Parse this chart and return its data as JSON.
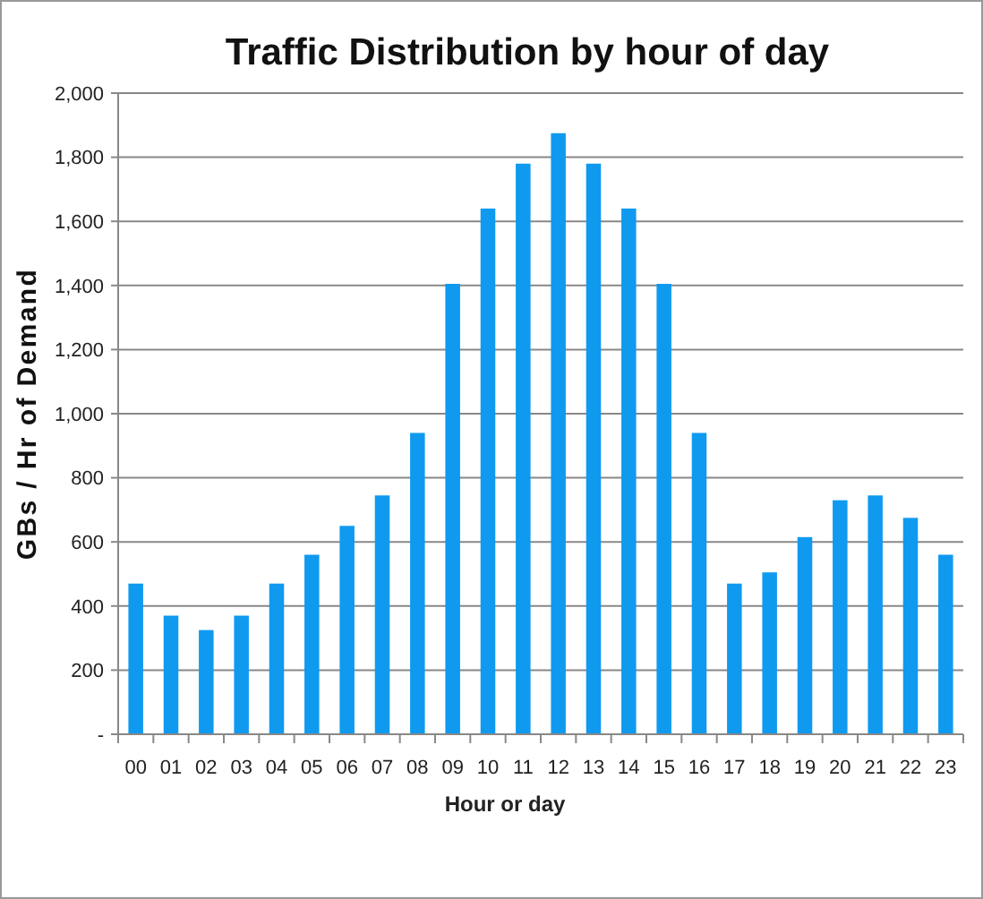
{
  "chart_data": {
    "type": "bar",
    "title": "Traffic Distribution by hour of day",
    "xlabel": "Hour or day",
    "ylabel": "GBs / Hr of Demand",
    "categories": [
      "00",
      "01",
      "02",
      "03",
      "04",
      "05",
      "06",
      "07",
      "08",
      "09",
      "10",
      "11",
      "12",
      "13",
      "14",
      "15",
      "16",
      "17",
      "18",
      "19",
      "20",
      "21",
      "22",
      "23"
    ],
    "values": [
      470,
      370,
      325,
      370,
      470,
      560,
      650,
      745,
      940,
      1405,
      1640,
      1780,
      1875,
      1780,
      1640,
      1405,
      940,
      470,
      505,
      615,
      730,
      745,
      675,
      560
    ],
    "color": "#0f9af0",
    "ylim": [
      0,
      2000
    ],
    "yticks": [
      {
        "value": 0,
        "label": "-"
      },
      {
        "value": 200,
        "label": "200"
      },
      {
        "value": 400,
        "label": "400"
      },
      {
        "value": 600,
        "label": "600"
      },
      {
        "value": 800,
        "label": "800"
      },
      {
        "value": 1000,
        "label": "1,000"
      },
      {
        "value": 1200,
        "label": "1,200"
      },
      {
        "value": 1400,
        "label": "1,400"
      },
      {
        "value": 1600,
        "label": "1,600"
      },
      {
        "value": 1800,
        "label": "1,800"
      },
      {
        "value": 2000,
        "label": "2,000"
      }
    ],
    "grid": "y"
  }
}
